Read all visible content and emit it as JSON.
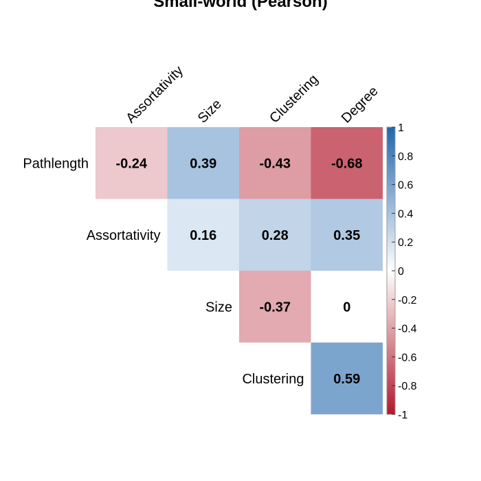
{
  "chart_data": {
    "type": "heatmap",
    "title": "Small-world (Pearson)",
    "rows": [
      "Pathlength",
      "Assortativity",
      "Size",
      "Clustering"
    ],
    "columns": [
      "Assortativity",
      "Size",
      "Clustering",
      "Degree"
    ],
    "cells": [
      {
        "row": 0,
        "col": 0,
        "value": -0.24,
        "label": "-0.24"
      },
      {
        "row": 0,
        "col": 1,
        "value": 0.39,
        "label": "0.39"
      },
      {
        "row": 0,
        "col": 2,
        "value": -0.43,
        "label": "-0.43"
      },
      {
        "row": 0,
        "col": 3,
        "value": -0.68,
        "label": "-0.68"
      },
      {
        "row": 1,
        "col": 1,
        "value": 0.16,
        "label": "0.16"
      },
      {
        "row": 1,
        "col": 2,
        "value": 0.28,
        "label": "0.28"
      },
      {
        "row": 1,
        "col": 3,
        "value": 0.35,
        "label": "0.35"
      },
      {
        "row": 2,
        "col": 2,
        "value": -0.37,
        "label": "-0.37"
      },
      {
        "row": 2,
        "col": 3,
        "value": 0,
        "label": "0"
      },
      {
        "row": 3,
        "col": 3,
        "value": 0.59,
        "label": "0.59"
      }
    ],
    "colorbar": {
      "range": [
        -1,
        1
      ],
      "ticks": [
        "1",
        "0.8",
        "0.6",
        "0.4",
        "0.2",
        "0",
        "-0.2",
        "-0.4",
        "-0.6",
        "-0.8",
        "-1"
      ],
      "colors": {
        "low": "#b2182b",
        "mid": "#ffffff",
        "high": "#2166ac"
      }
    },
    "layout": "upper-triangle",
    "legend_placement": "right"
  }
}
